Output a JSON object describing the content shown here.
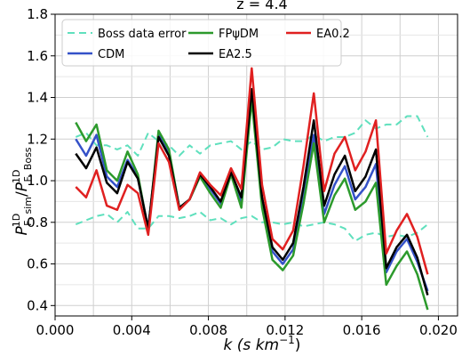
{
  "chart_data": {
    "type": "line",
    "title": "z = 4.4",
    "xlabel": {
      "pre": "k (s km",
      "sup": "−1",
      "post": ")"
    },
    "ylabel": {
      "num": "P",
      "num_sub": "F, sim",
      "num_sup": "1D",
      "den": "P",
      "den_sub": "F, Boss",
      "den_sup": "1D"
    },
    "xlim": [
      0.0,
      0.021
    ],
    "ylim": [
      0.35,
      1.8
    ],
    "xticks": [
      0.0,
      0.004,
      0.008,
      0.012,
      0.016,
      0.02
    ],
    "xtick_labels": [
      "0.000",
      "0.004",
      "0.008",
      "0.012",
      "0.016",
      "0.020"
    ],
    "yticks": [
      0.4,
      0.6,
      0.8,
      1.0,
      1.2,
      1.4,
      1.6,
      1.8
    ],
    "ytick_labels": [
      "0.4",
      "0.6",
      "0.8",
      "1.0",
      "1.2",
      "1.4",
      "1.6",
      "1.8"
    ],
    "grid": true,
    "legend_position": "top",
    "x": [
      0.00108,
      0.00162,
      0.00216,
      0.0027,
      0.00324,
      0.00378,
      0.00432,
      0.00486,
      0.0054,
      0.00594,
      0.00648,
      0.00702,
      0.00756,
      0.0081,
      0.00864,
      0.00918,
      0.00972,
      0.01026,
      0.0108,
      0.01134,
      0.01188,
      0.01242,
      0.01296,
      0.0135,
      0.01404,
      0.01458,
      0.01512,
      0.01566,
      0.0162,
      0.01674,
      0.01728,
      0.01782,
      0.01836,
      0.0189,
      0.01944
    ],
    "series": [
      {
        "name": "Boss data error",
        "color": "#5fe0bd",
        "dashed": true,
        "values": [
          1.21,
          1.23,
          1.17,
          1.17,
          1.15,
          1.17,
          1.12,
          1.23,
          1.19,
          1.17,
          1.12,
          1.17,
          1.13,
          1.17,
          1.18,
          1.19,
          1.15,
          1.19,
          1.15,
          1.16,
          1.2,
          1.19,
          1.19,
          1.22,
          1.19,
          1.21,
          1.21,
          1.23,
          1.29,
          1.25,
          1.27,
          1.27,
          1.31,
          1.31,
          1.21
        ]
      },
      {
        "name": "Boss data error lower",
        "color": "#5fe0bd",
        "dashed": true,
        "values": [
          0.79,
          0.81,
          0.83,
          0.84,
          0.8,
          0.85,
          0.77,
          0.77,
          0.83,
          0.83,
          0.82,
          0.83,
          0.85,
          0.81,
          0.82,
          0.79,
          0.82,
          0.83,
          0.8,
          0.8,
          0.79,
          0.8,
          0.78,
          0.79,
          0.8,
          0.79,
          0.77,
          0.71,
          0.74,
          0.75,
          0.73,
          0.74,
          0.73,
          0.75,
          0.79
        ]
      },
      {
        "name": "CDM",
        "color": "#3451c8",
        "dashed": false,
        "values": [
          1.2,
          1.12,
          1.22,
          1.02,
          0.97,
          1.1,
          1.02,
          0.77,
          1.22,
          1.14,
          0.87,
          0.91,
          1.03,
          0.96,
          0.89,
          1.04,
          0.9,
          1.43,
          0.91,
          0.66,
          0.6,
          0.67,
          0.93,
          1.22,
          0.84,
          0.98,
          1.07,
          0.91,
          0.97,
          1.08,
          0.56,
          0.66,
          0.72,
          0.61,
          0.47
        ]
      },
      {
        "name": "FPψDM",
        "color": "#2c9a2c",
        "dashed": false,
        "values": [
          1.28,
          1.19,
          1.27,
          1.05,
          1.0,
          1.14,
          1.03,
          0.76,
          1.24,
          1.15,
          0.87,
          0.91,
          1.02,
          0.94,
          0.87,
          1.03,
          0.87,
          1.39,
          0.87,
          0.62,
          0.57,
          0.64,
          0.89,
          1.18,
          0.8,
          0.93,
          1.01,
          0.86,
          0.9,
          0.99,
          0.5,
          0.59,
          0.66,
          0.55,
          0.38
        ]
      },
      {
        "name": "EA2.5",
        "color": "#000000",
        "dashed": false,
        "values": [
          1.13,
          1.06,
          1.16,
          0.99,
          0.94,
          1.09,
          1.01,
          0.77,
          1.21,
          1.12,
          0.87,
          0.91,
          1.03,
          0.97,
          0.9,
          1.04,
          0.92,
          1.44,
          0.92,
          0.68,
          0.62,
          0.7,
          0.97,
          1.29,
          0.88,
          1.03,
          1.12,
          0.95,
          1.02,
          1.15,
          0.58,
          0.68,
          0.74,
          0.63,
          0.45
        ]
      },
      {
        "name": "EA0.2",
        "color": "#e02020",
        "dashed": false,
        "values": [
          0.97,
          0.92,
          1.05,
          0.88,
          0.86,
          0.98,
          0.94,
          0.74,
          1.18,
          1.09,
          0.86,
          0.91,
          1.04,
          0.98,
          0.93,
          1.06,
          0.96,
          1.54,
          0.98,
          0.72,
          0.67,
          0.76,
          1.07,
          1.42,
          0.95,
          1.13,
          1.21,
          1.05,
          1.14,
          1.29,
          0.65,
          0.76,
          0.84,
          0.73,
          0.55
        ]
      }
    ],
    "legend": [
      {
        "label": "Boss data error",
        "color": "#5fe0bd",
        "dashed": true
      },
      {
        "label": "CDM",
        "color": "#3451c8",
        "dashed": false
      },
      {
        "label": "FPψDM",
        "color": "#2c9a2c",
        "dashed": false
      },
      {
        "label": "EA2.5",
        "color": "#000000",
        "dashed": false
      },
      {
        "label": "EA0.2",
        "color": "#e02020",
        "dashed": false
      }
    ]
  }
}
